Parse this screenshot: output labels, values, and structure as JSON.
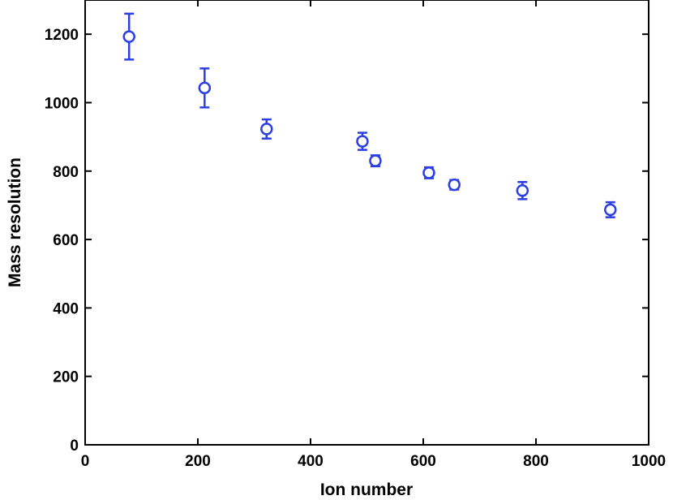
{
  "chart_data": {
    "type": "scatter",
    "title": "",
    "xlabel": "Ion number",
    "ylabel": "Mass resolution",
    "xlim": [
      0,
      1000
    ],
    "ylim": [
      0,
      1300
    ],
    "xticks": [
      0,
      200,
      400,
      600,
      800,
      1000
    ],
    "yticks": [
      0,
      200,
      400,
      600,
      800,
      1000,
      1200
    ],
    "xtick_labels": [
      "0",
      "200",
      "400",
      "600",
      "800",
      "1000"
    ],
    "ytick_labels": [
      "0",
      "200",
      "400",
      "600",
      "800",
      "1000",
      "1200"
    ],
    "grid": false,
    "marker": "open-circle",
    "color": "#2c3fe6",
    "points": [
      {
        "x": 78,
        "y": 1193,
        "err": 67
      },
      {
        "x": 212,
        "y": 1043,
        "err": 57
      },
      {
        "x": 322,
        "y": 923,
        "err": 28
      },
      {
        "x": 492,
        "y": 887,
        "err": 25
      },
      {
        "x": 515,
        "y": 830,
        "err": 16
      },
      {
        "x": 610,
        "y": 795,
        "err": 16
      },
      {
        "x": 655,
        "y": 760,
        "err": 14
      },
      {
        "x": 776,
        "y": 743,
        "err": 25
      },
      {
        "x": 932,
        "y": 687,
        "err": 22
      }
    ]
  }
}
